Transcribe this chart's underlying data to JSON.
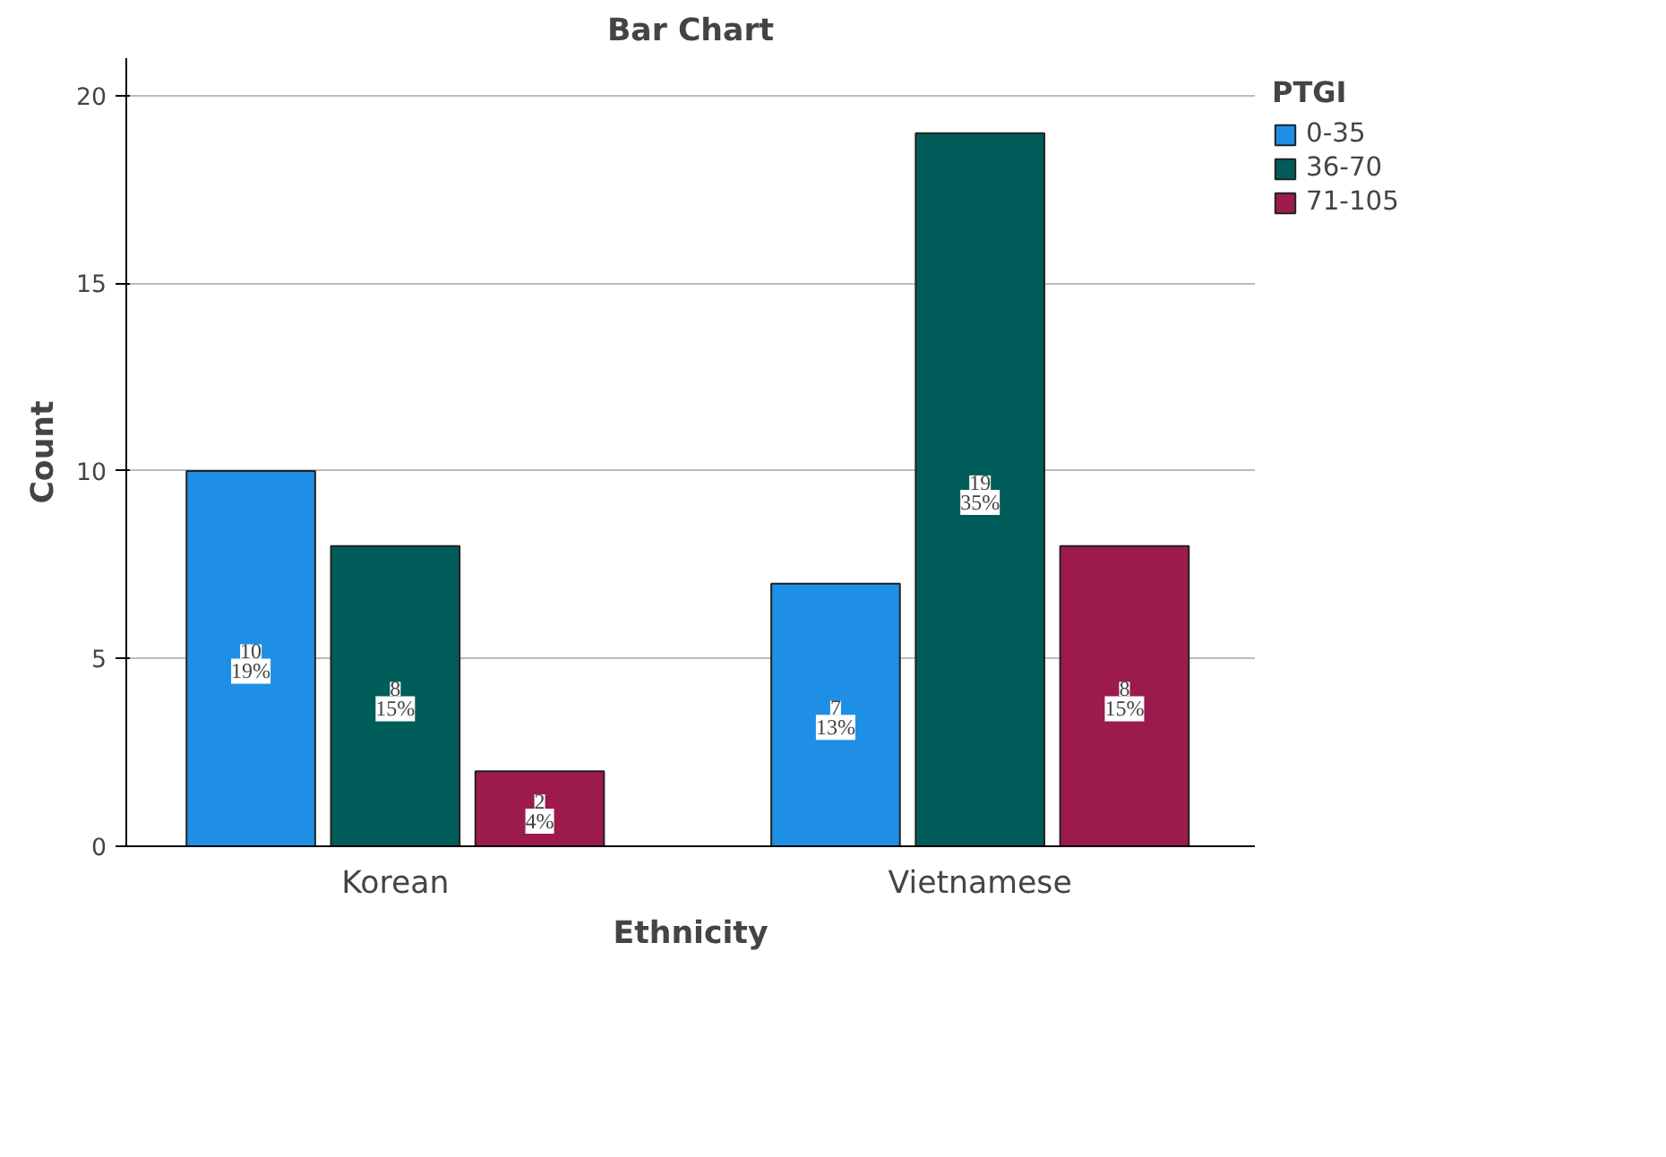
{
  "chart_data": {
    "type": "bar",
    "title": "Bar Chart",
    "xlabel": "Ethnicity",
    "ylabel": "Count",
    "legend_title": "PTGI",
    "categories": [
      "Korean",
      "Vietnamese"
    ],
    "series": [
      {
        "name": "0-35",
        "color": "#1f8fe6",
        "values": [
          10,
          7
        ],
        "value_labels": [
          "10\n19%",
          "7\n13%"
        ]
      },
      {
        "name": "36-70",
        "color": "#005c59",
        "values": [
          8,
          19
        ],
        "value_labels": [
          "8\n15%",
          "19\n35%"
        ]
      },
      {
        "name": "71-105",
        "color": "#9c1a4c",
        "values": [
          2,
          8
        ],
        "value_labels": [
          "2\n4%",
          "8\n15%"
        ]
      }
    ],
    "ylim": [
      0,
      21
    ],
    "yticks": [
      0,
      5,
      10,
      15,
      20
    ],
    "grid": "y",
    "legend": "top right"
  }
}
